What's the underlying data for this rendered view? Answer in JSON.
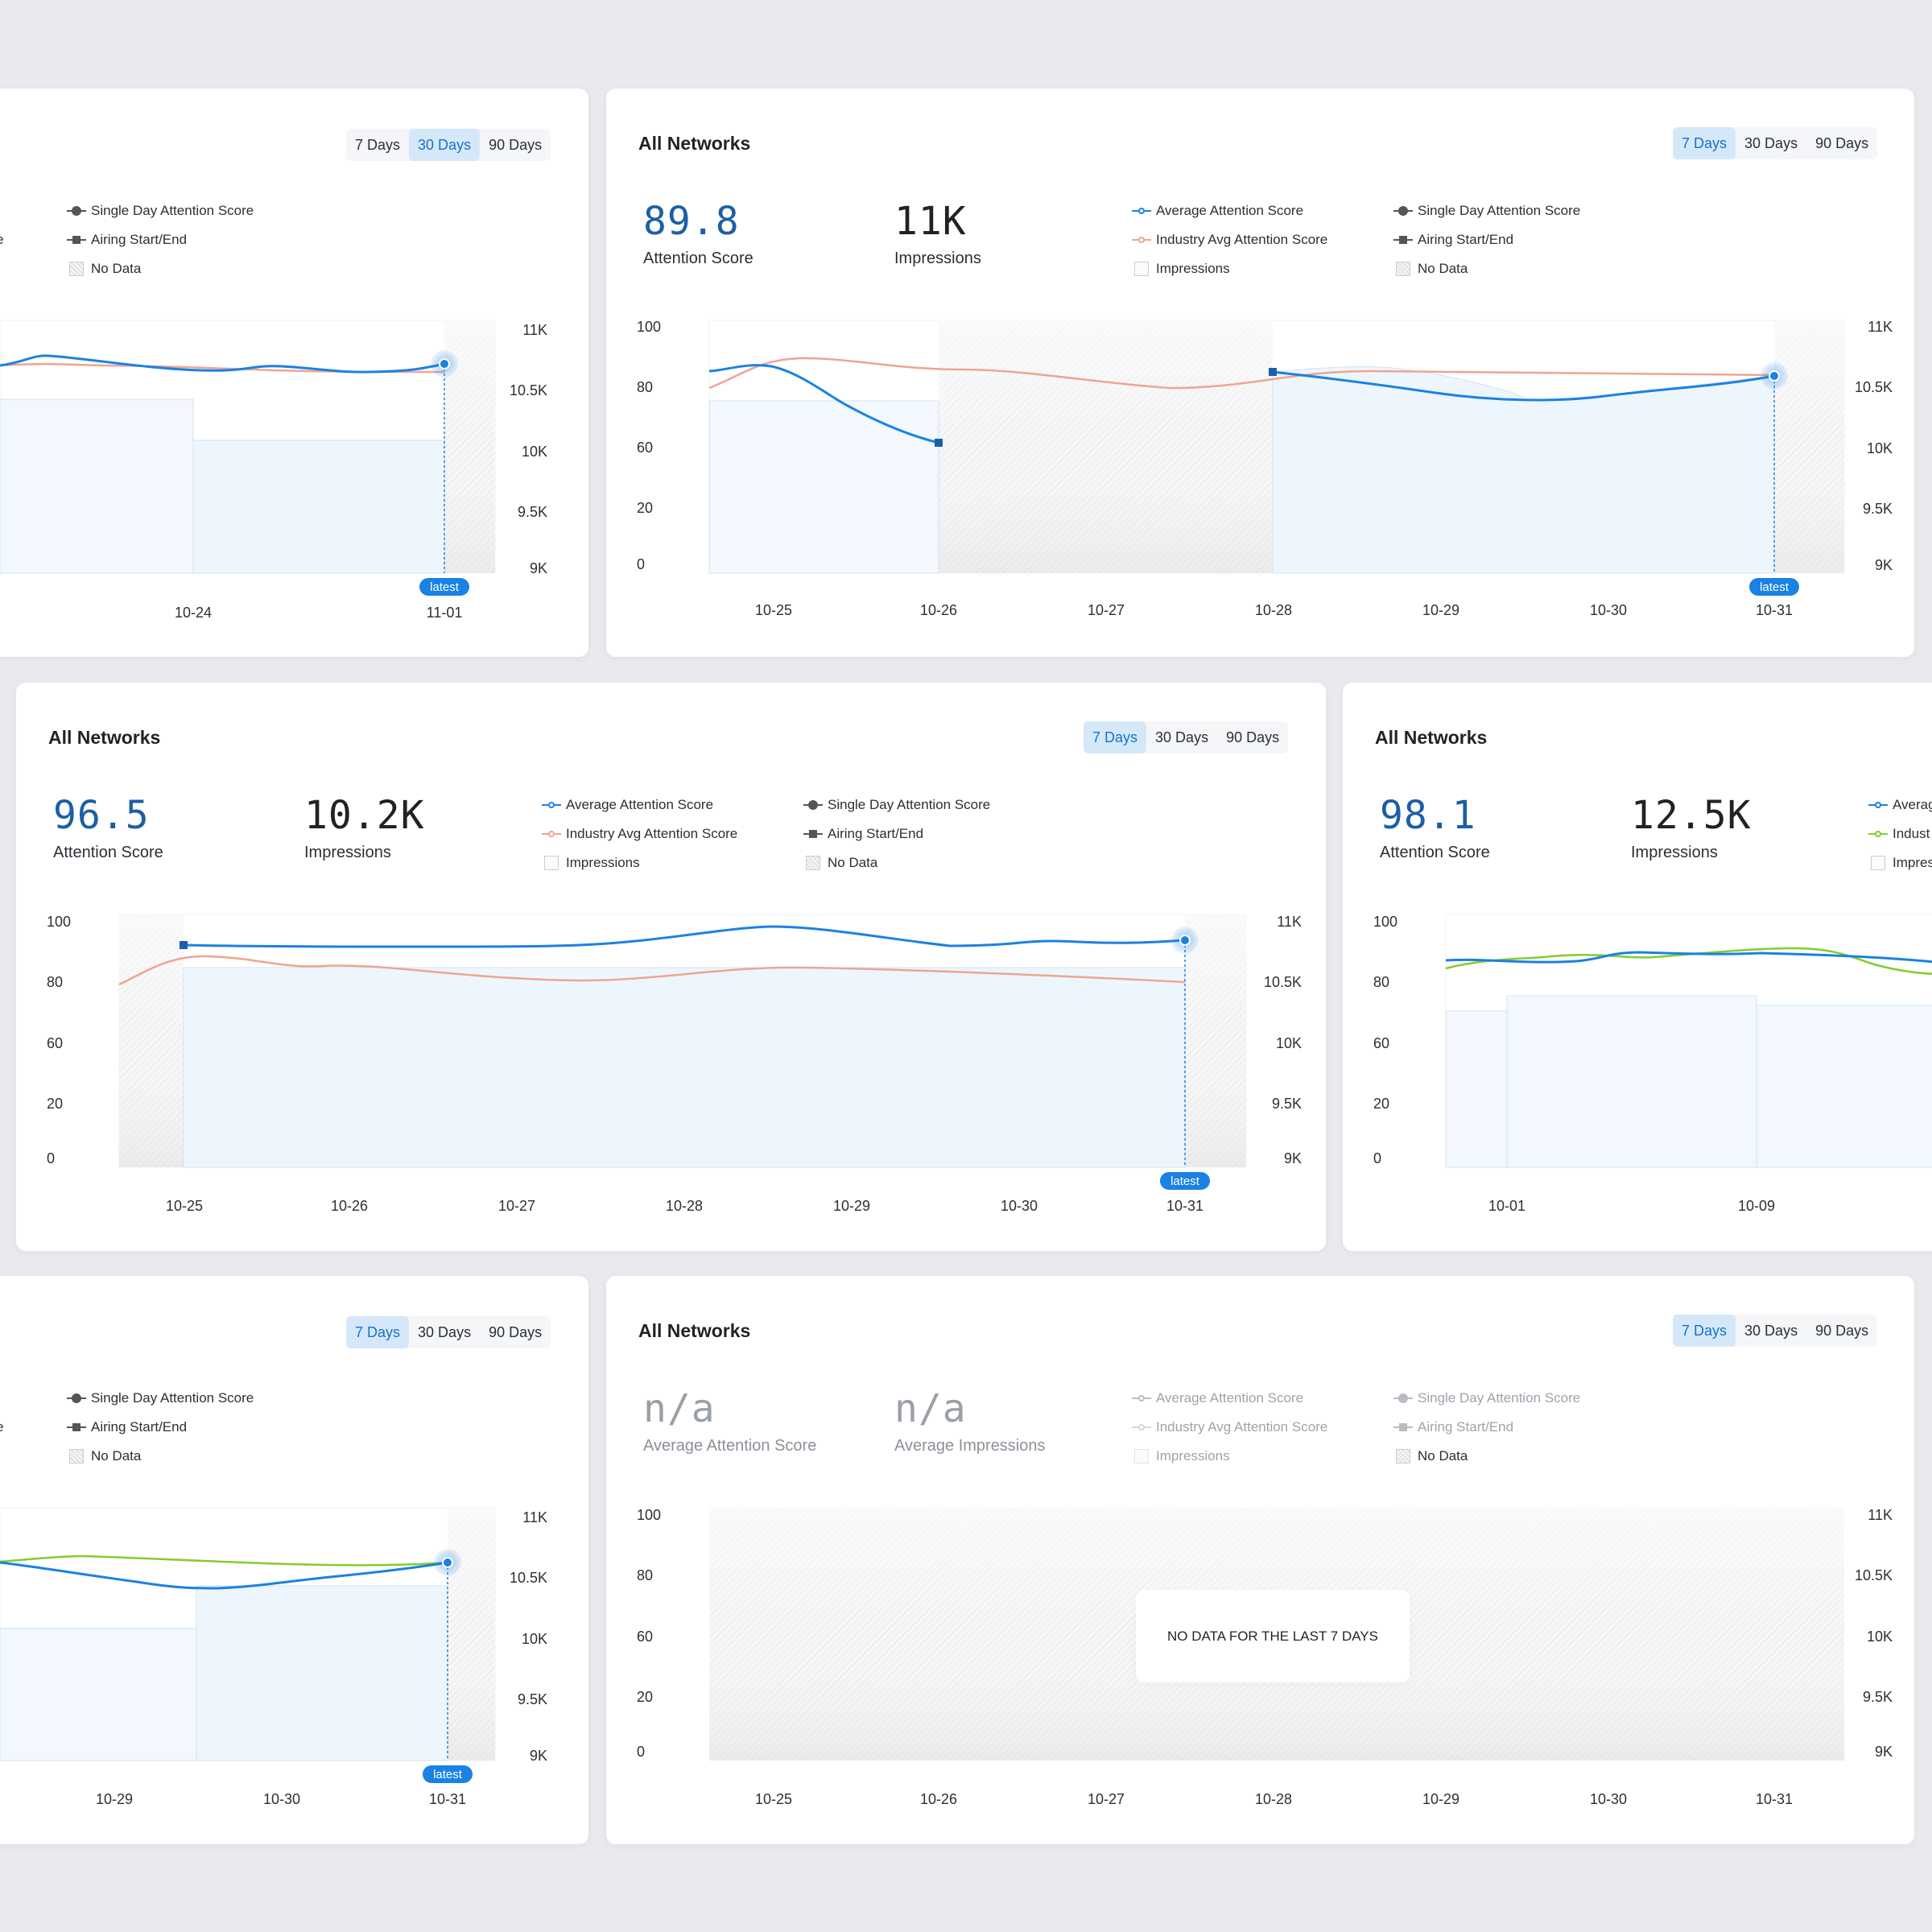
{
  "tabs": [
    "7 Days",
    "30 Days",
    "90 Days"
  ],
  "latest_label": "latest",
  "legend": {
    "avg_score": "Average Attention Score",
    "industry": "Industry Avg Attention Score",
    "impressions": "Impressions",
    "single_day": "Single Day Attention Score",
    "airing": "Airing Start/End",
    "no_data": "No Data",
    "avg_cut": "Averag",
    "industry_cut": "Indust",
    "impressions_cut": "Impres",
    "avg_score_tail": "ore"
  },
  "y_left": [
    "100",
    "80",
    "60",
    "20",
    "0"
  ],
  "y_right": [
    "11K",
    "10.5K",
    "10K",
    "9.5K",
    "9K"
  ],
  "colors": {
    "accent": "#1a82e2",
    "industry_coral": "#f0a491",
    "industry_green": "#84cc2e",
    "impressions_fill": "#eef6fd",
    "active_tab": "#d5e8fa"
  },
  "cards": {
    "top_left": {
      "active_tab": "30 Days",
      "x_labels": [
        "10-24",
        "11-01"
      ]
    },
    "top_right": {
      "title": "All Networks",
      "active_tab": "7 Days",
      "score": "89.8",
      "score_label": "Attention Score",
      "impressions": "11K",
      "impressions_label": "Impressions",
      "x_labels": [
        "10-25",
        "10-26",
        "10-27",
        "10-28",
        "10-29",
        "10-30",
        "10-31"
      ]
    },
    "mid_left": {
      "title": "All Networks",
      "active_tab": "7 Days",
      "score": "96.5",
      "score_label": "Attention Score",
      "impressions": "10.2K",
      "impressions_label": "Impressions",
      "x_labels": [
        "10-25",
        "10-26",
        "10-27",
        "10-28",
        "10-29",
        "10-30",
        "10-31"
      ]
    },
    "mid_right": {
      "title": "All Networks",
      "score": "98.1",
      "score_label": "Attention Score",
      "impressions": "12.5K",
      "impressions_label": "Impressions",
      "x_labels": [
        "10-01",
        "10-09"
      ]
    },
    "bottom_left": {
      "active_tab": "7 Days",
      "x_labels": [
        "10-29",
        "10-30",
        "10-31"
      ]
    },
    "bottom_right": {
      "title": "All Networks",
      "active_tab": "7 Days",
      "score": "n/a",
      "score_label": "Average Attention Score",
      "impressions": "n/a",
      "impressions_label": "Average Impressions",
      "no_data_message": "NO DATA FOR THE LAST 7 DAYS",
      "x_labels": [
        "10-25",
        "10-26",
        "10-27",
        "10-28",
        "10-29",
        "10-30",
        "10-31"
      ]
    }
  }
}
